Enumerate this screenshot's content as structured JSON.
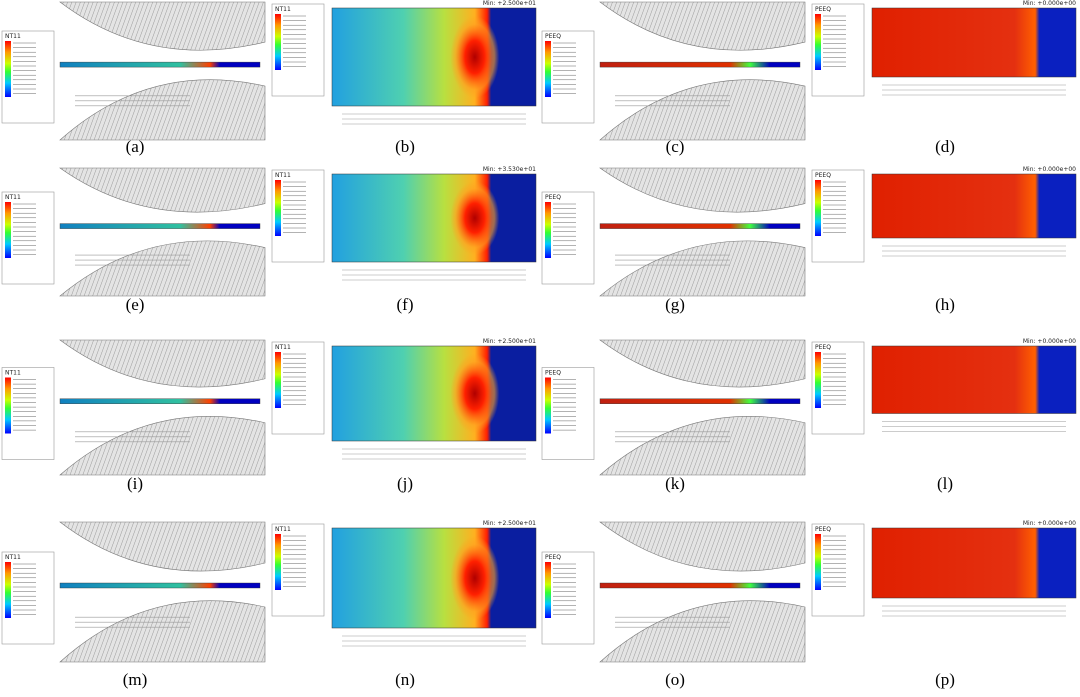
{
  "panels": [
    {
      "label": "(a)",
      "kind": "roll",
      "legend_title": "NT11"
    },
    {
      "label": "(b)",
      "kind": "contour",
      "legend_title": "NT11",
      "note": "Min: +2.500e+01"
    },
    {
      "label": "(c)",
      "kind": "roll",
      "legend_title": "PEEQ"
    },
    {
      "label": "(d)",
      "kind": "contour",
      "legend_title": "PEEQ",
      "note": "Min: +0.000e+00"
    },
    {
      "label": "(e)",
      "kind": "roll",
      "legend_title": "NT11"
    },
    {
      "label": "(f)",
      "kind": "contour",
      "legend_title": "NT11",
      "note": "Min: +3.530e+01"
    },
    {
      "label": "(g)",
      "kind": "roll",
      "legend_title": "PEEQ"
    },
    {
      "label": "(h)",
      "kind": "contour",
      "legend_title": "PEEQ",
      "note": "Min: +0.000e+00"
    },
    {
      "label": "(i)",
      "kind": "roll",
      "legend_title": "NT11"
    },
    {
      "label": "(j)",
      "kind": "contour",
      "legend_title": "NT11",
      "note": "Min: +2.500e+01"
    },
    {
      "label": "(k)",
      "kind": "roll",
      "legend_title": "PEEQ"
    },
    {
      "label": "(l)",
      "kind": "contour",
      "legend_title": "PEEQ",
      "note": "Min: +0.000e+00"
    },
    {
      "label": "(m)",
      "kind": "roll",
      "legend_title": "NT11"
    },
    {
      "label": "(n)",
      "kind": "contour",
      "legend_title": "NT11",
      "note": "Min: +2.500e+01"
    },
    {
      "label": "(o)",
      "kind": "roll",
      "legend_title": "PEEQ"
    },
    {
      "label": "(p)",
      "kind": "contour",
      "legend_title": "PEEQ",
      "note": "Min: +0.000e+00"
    }
  ]
}
